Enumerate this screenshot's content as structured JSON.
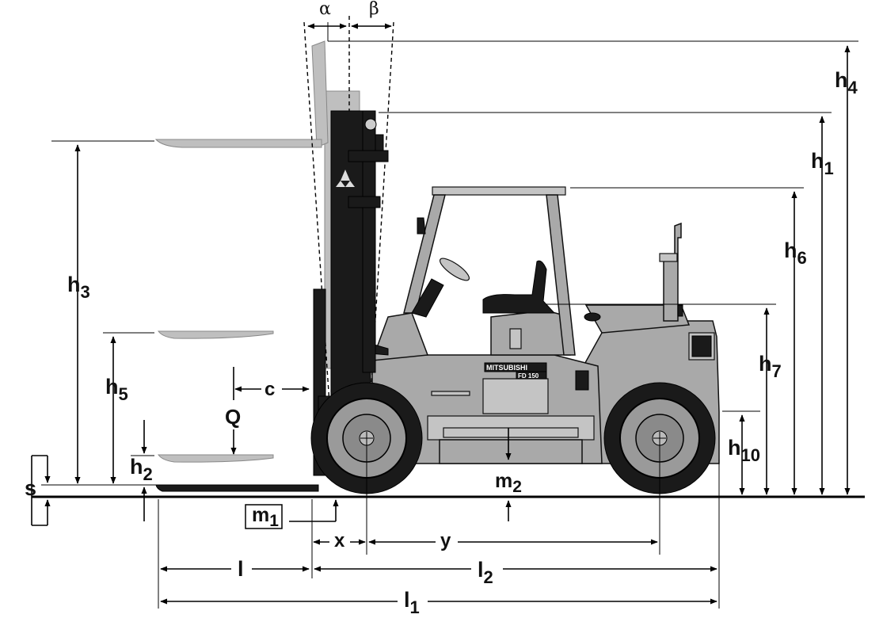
{
  "labels": {
    "alpha": "α",
    "beta": "β",
    "h1": {
      "main": "h",
      "sub": "1"
    },
    "h2": {
      "main": "h",
      "sub": "2"
    },
    "h3": {
      "main": "h",
      "sub": "3"
    },
    "h4": {
      "main": "h",
      "sub": "4"
    },
    "h5": {
      "main": "h",
      "sub": "5"
    },
    "h6": {
      "main": "h",
      "sub": "6"
    },
    "h7": {
      "main": "h",
      "sub": "7"
    },
    "h10": {
      "main": "h",
      "sub": "10"
    },
    "c": "c",
    "Q": "Q",
    "s": "s",
    "m1": {
      "main": "m",
      "sub": "1"
    },
    "m2": {
      "main": "m",
      "sub": "2"
    },
    "x": "x",
    "y": "y",
    "l": "l",
    "l1": {
      "main": "l",
      "sub": "1"
    },
    "l2": {
      "main": "l",
      "sub": "2"
    }
  },
  "branding": {
    "maker": "MITSUBISHI",
    "model": "FD 150"
  }
}
